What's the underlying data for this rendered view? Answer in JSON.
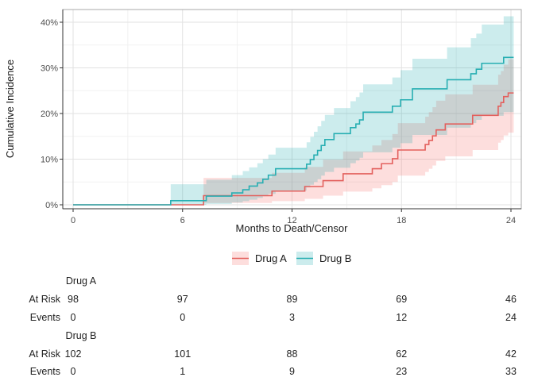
{
  "chart_data": {
    "type": "line",
    "step_interpolation": true,
    "title": "",
    "xlabel": "Months to Death/Censor",
    "ylabel": "Cumulative Incidence",
    "xlim": [
      -0.6,
      24.6
    ],
    "ylim": [
      -0.9,
      42.8
    ],
    "x_ticks": [
      0,
      6,
      12,
      18,
      24
    ],
    "x_tick_labels": [
      "0",
      "6",
      "12",
      "18",
      "24"
    ],
    "x_minor_ticks": [
      3,
      9,
      15,
      21
    ],
    "y_ticks": [
      0,
      10,
      20,
      30,
      40
    ],
    "y_tick_labels": [
      "0%",
      "10%",
      "20%",
      "30%",
      "40%"
    ],
    "y_minor_ticks": [
      5,
      15,
      25,
      35
    ],
    "grid": true,
    "legend_position": "bottom",
    "x_end": 24.15,
    "series": [
      {
        "name": "Drug A",
        "color": "#E3605D",
        "band_color": "rgba(247,106,98,0.22)",
        "steps": [
          [
            0,
            0
          ],
          [
            7.15,
            2.0
          ],
          [
            10.9,
            3.0
          ],
          [
            12.7,
            4.0
          ],
          [
            13.7,
            5.3
          ],
          [
            14.8,
            6.8
          ],
          [
            16.4,
            7.9
          ],
          [
            16.9,
            9.0
          ],
          [
            17.5,
            10.1
          ],
          [
            17.8,
            12.0
          ],
          [
            19.3,
            13.2
          ],
          [
            19.5,
            14.1
          ],
          [
            19.7,
            15.1
          ],
          [
            19.9,
            16.4
          ],
          [
            20.4,
            17.7
          ],
          [
            21.9,
            19.6
          ],
          [
            23.3,
            21.6
          ],
          [
            23.45,
            22.4
          ],
          [
            23.6,
            23.7
          ],
          [
            23.85,
            24.5
          ]
        ],
        "ci": [
          [
            7.15,
            0.4,
            5.9
          ],
          [
            10.9,
            0.8,
            7.0
          ],
          [
            12.7,
            1.3,
            8.3
          ],
          [
            13.7,
            2.0,
            9.9
          ],
          [
            14.8,
            2.9,
            11.7
          ],
          [
            16.4,
            3.6,
            13.0
          ],
          [
            16.9,
            4.3,
            14.2
          ],
          [
            17.5,
            5.0,
            15.5
          ],
          [
            17.8,
            6.4,
            17.9
          ],
          [
            19.3,
            7.2,
            19.3
          ],
          [
            19.5,
            7.9,
            20.3
          ],
          [
            19.7,
            8.6,
            21.4
          ],
          [
            19.9,
            9.6,
            22.8
          ],
          [
            20.4,
            10.6,
            24.2
          ],
          [
            21.9,
            12.0,
            26.3
          ],
          [
            23.3,
            13.6,
            28.5
          ],
          [
            23.45,
            14.2,
            29.3
          ],
          [
            23.6,
            15.2,
            30.7
          ],
          [
            23.85,
            15.8,
            31.9
          ]
        ]
      },
      {
        "name": "Drug B",
        "color": "#27AEB2",
        "band_color": "rgba(0,158,163,0.20)",
        "steps": [
          [
            0,
            0
          ],
          [
            5.35,
            0.9
          ],
          [
            7.3,
            1.9
          ],
          [
            8.7,
            2.6
          ],
          [
            9.3,
            3.3
          ],
          [
            9.65,
            4.1
          ],
          [
            10.1,
            4.8
          ],
          [
            10.4,
            5.6
          ],
          [
            10.7,
            6.5
          ],
          [
            11.1,
            7.9
          ],
          [
            12.8,
            8.9
          ],
          [
            13.0,
            9.9
          ],
          [
            13.2,
            10.9
          ],
          [
            13.4,
            11.9
          ],
          [
            13.6,
            13.0
          ],
          [
            13.8,
            14.3
          ],
          [
            14.3,
            15.6
          ],
          [
            15.2,
            16.9
          ],
          [
            15.5,
            17.7
          ],
          [
            15.7,
            18.6
          ],
          [
            15.9,
            20.3
          ],
          [
            17.5,
            21.6
          ],
          [
            17.95,
            23.0
          ],
          [
            18.6,
            25.4
          ],
          [
            20.5,
            27.4
          ],
          [
            21.8,
            28.7
          ],
          [
            22.1,
            29.7
          ],
          [
            22.4,
            31.0
          ],
          [
            23.6,
            32.3
          ]
        ],
        "ci": [
          [
            5.35,
            0.0,
            4.5
          ],
          [
            7.3,
            0.2,
            5.5
          ],
          [
            8.7,
            0.5,
            6.5
          ],
          [
            9.3,
            0.8,
            7.4
          ],
          [
            9.65,
            1.1,
            8.2
          ],
          [
            10.1,
            1.5,
            9.1
          ],
          [
            10.4,
            1.9,
            10.0
          ],
          [
            10.7,
            2.4,
            11.0
          ],
          [
            11.1,
            3.1,
            12.5
          ],
          [
            12.8,
            3.8,
            13.7
          ],
          [
            13.0,
            4.4,
            14.9
          ],
          [
            13.2,
            5.0,
            16.0
          ],
          [
            13.4,
            5.6,
            17.2
          ],
          [
            13.6,
            6.4,
            18.4
          ],
          [
            13.8,
            7.2,
            19.7
          ],
          [
            14.3,
            8.1,
            21.2
          ],
          [
            15.2,
            9.1,
            22.7
          ],
          [
            15.5,
            9.7,
            23.6
          ],
          [
            15.7,
            10.3,
            24.6
          ],
          [
            15.9,
            11.5,
            26.4
          ],
          [
            17.5,
            12.5,
            27.9
          ],
          [
            17.95,
            13.5,
            29.5
          ],
          [
            18.6,
            15.3,
            32.0
          ],
          [
            20.5,
            16.9,
            34.5
          ],
          [
            21.8,
            17.9,
            36.5
          ],
          [
            22.1,
            18.6,
            37.5
          ],
          [
            22.4,
            19.5,
            39.5
          ],
          [
            23.6,
            20.3,
            41.3
          ]
        ]
      }
    ],
    "risk_table": {
      "row_labels": {
        "at_risk": "At Risk",
        "events": "Events"
      },
      "times": [
        0,
        6,
        12,
        18,
        24
      ],
      "groups": [
        {
          "name": "Drug A",
          "at_risk": [
            98,
            97,
            89,
            69,
            46
          ],
          "events": [
            0,
            0,
            3,
            12,
            24
          ]
        },
        {
          "name": "Drug B",
          "at_risk": [
            102,
            101,
            88,
            62,
            42
          ],
          "events": [
            0,
            1,
            9,
            23,
            33
          ]
        }
      ]
    }
  }
}
